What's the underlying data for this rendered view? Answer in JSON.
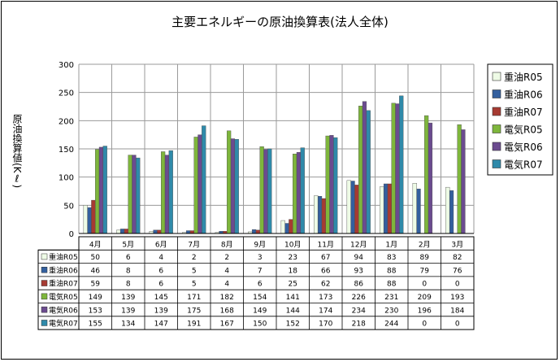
{
  "chart_data": {
    "type": "bar",
    "title": "主要エネルギーの原油換算表(法人全体)",
    "ylabel": "原油換算値(Kℓ)",
    "xlabel": "",
    "ylim": [
      0,
      300
    ],
    "yticks": [
      0,
      50,
      100,
      150,
      200,
      250,
      300
    ],
    "grid": true,
    "legend_position": "right",
    "categories": [
      "4月",
      "5月",
      "6月",
      "7月",
      "8月",
      "9月",
      "10月",
      "11月",
      "12月",
      "1月",
      "2月",
      "3月"
    ],
    "series": [
      {
        "name": "重油R05",
        "color": "#eefbe6",
        "values": [
          50,
          6,
          4,
          2,
          2,
          3,
          23,
          67,
          94,
          83,
          89,
          82
        ]
      },
      {
        "name": "重油R06",
        "color": "#335f9e",
        "values": [
          46,
          8,
          6,
          5,
          4,
          7,
          18,
          66,
          93,
          88,
          79,
          76
        ]
      },
      {
        "name": "重油R07",
        "color": "#a63a32",
        "values": [
          59,
          8,
          6,
          5,
          4,
          6,
          25,
          62,
          86,
          88,
          0,
          0
        ]
      },
      {
        "name": "電気R05",
        "color": "#7eb63c",
        "values": [
          149,
          139,
          145,
          171,
          182,
          154,
          141,
          173,
          226,
          231,
          209,
          193
        ]
      },
      {
        "name": "電気R06",
        "color": "#6b4b8f",
        "values": [
          153,
          139,
          139,
          175,
          168,
          149,
          144,
          174,
          234,
          230,
          196,
          184
        ]
      },
      {
        "name": "電気R07",
        "color": "#2f8aaa",
        "values": [
          155,
          134,
          147,
          191,
          167,
          150,
          152,
          170,
          218,
          244,
          0,
          0
        ]
      }
    ]
  }
}
